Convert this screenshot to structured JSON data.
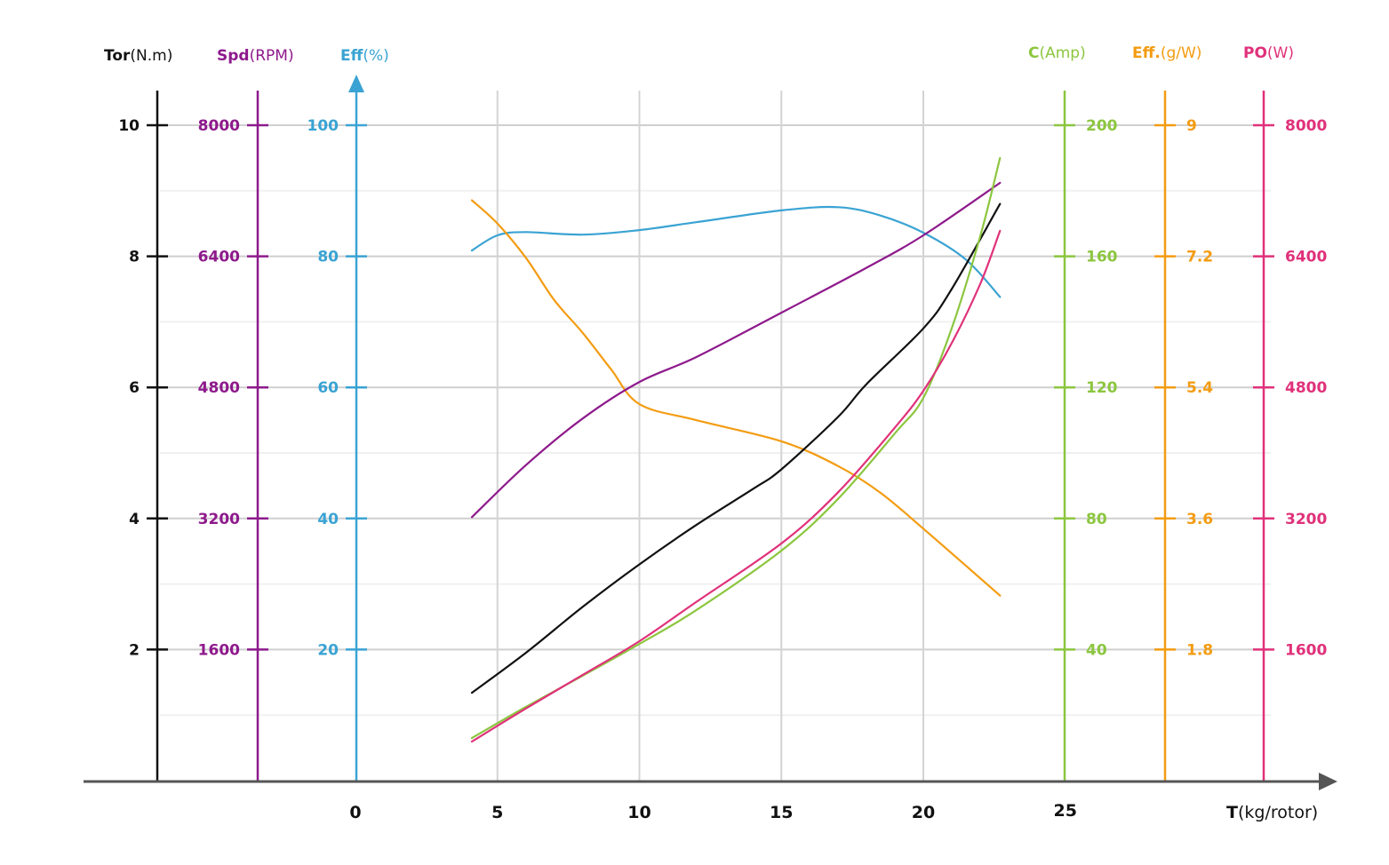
{
  "chart_data": {
    "type": "line",
    "title": "",
    "xlabel": {
      "bold": "T",
      "unit": "(kg/rotor)"
    },
    "x_ticks": [
      0,
      5,
      10,
      15,
      20,
      25
    ],
    "xlim": [
      0,
      25
    ],
    "grid": true,
    "axes": [
      {
        "id": "tor",
        "side": "left",
        "bold": "Tor",
        "unit": "(N.m)",
        "color": "#111111",
        "range": [
          0,
          10
        ],
        "ticks": [
          "2",
          "4",
          "6",
          "8",
          "10"
        ],
        "tick_values": [
          2,
          4,
          6,
          8,
          10
        ]
      },
      {
        "id": "spd",
        "side": "left",
        "bold": "Spd",
        "unit": "(RPM)",
        "color": "#8e1a8c",
        "range": [
          0,
          8000
        ],
        "ticks": [
          "1600",
          "3200",
          "4800",
          "6400",
          "8000"
        ],
        "tick_values": [
          1600,
          3200,
          4800,
          6400,
          8000
        ]
      },
      {
        "id": "eff",
        "side": "left",
        "bold": "Eff",
        "unit": "(%)",
        "color": "#3aa3d3",
        "range": [
          0,
          100
        ],
        "ticks": [
          "20",
          "40",
          "60",
          "80",
          "100"
        ],
        "tick_values": [
          20,
          40,
          60,
          80,
          100
        ]
      },
      {
        "id": "cur",
        "side": "right",
        "bold": "C",
        "unit": "(Amp)",
        "color": "#8cc63f",
        "range": [
          0,
          200
        ],
        "ticks": [
          "40",
          "80",
          "120",
          "160",
          "200"
        ],
        "tick_values": [
          40,
          80,
          120,
          160,
          200
        ]
      },
      {
        "id": "effgw",
        "side": "right",
        "bold": "Eff.",
        "unit": "(g/W)",
        "color": "#f39c12",
        "range": [
          0,
          9
        ],
        "ticks": [
          "1.8",
          "3.6",
          "5.4",
          "7.2",
          "9"
        ],
        "tick_values": [
          1.8,
          3.6,
          5.4,
          7.2,
          9
        ]
      },
      {
        "id": "po",
        "side": "right",
        "bold": "PO",
        "unit": "(W)",
        "color": "#e0317a",
        "range": [
          0,
          8000
        ],
        "ticks": [
          "1600",
          "3200",
          "4800",
          "6400",
          "8000"
        ],
        "tick_values": [
          1600,
          3200,
          4800,
          6400,
          8000
        ]
      }
    ],
    "series": [
      {
        "name": "Torque",
        "axis": "tor",
        "color": "#111111",
        "x": [
          4.1,
          6,
          8,
          10,
          12,
          14,
          15,
          17,
          18,
          20,
          21,
          22.7
        ],
        "y": [
          1.34,
          1.95,
          2.65,
          3.3,
          3.9,
          4.45,
          4.75,
          5.55,
          6.05,
          6.9,
          7.5,
          8.8
        ]
      },
      {
        "name": "Speed",
        "axis": "spd",
        "color": "#8e1a8c",
        "x": [
          4.1,
          6,
          8,
          10,
          12,
          15,
          18,
          20,
          22.7
        ],
        "y": [
          3216,
          3850,
          4420,
          4866,
          5170,
          5712,
          6260,
          6656,
          7296
        ]
      },
      {
        "name": "Efficiency %",
        "axis": "eff",
        "color": "#3aa3d3",
        "x": [
          4.1,
          5,
          6,
          8,
          10,
          12,
          15,
          17,
          18.5,
          20,
          21.5,
          22.7
        ],
        "y": [
          80.9,
          83.2,
          83.7,
          83.3,
          84.0,
          85.2,
          87.0,
          87.5,
          86.2,
          83.6,
          79.5,
          73.8
        ]
      },
      {
        "name": "Efficiency g/W",
        "axis": "effgw",
        "color": "#f39c12",
        "x": [
          4.1,
          5,
          6,
          7,
          8,
          9,
          10,
          12,
          15,
          17,
          18.5,
          20,
          22.7
        ],
        "y": [
          7.97,
          7.65,
          7.18,
          6.6,
          6.15,
          5.65,
          5.17,
          4.95,
          4.66,
          4.32,
          3.95,
          3.46,
          2.54
        ]
      },
      {
        "name": "Current",
        "axis": "cur",
        "color": "#8cc63f",
        "x": [
          4.1,
          6,
          8,
          10,
          12,
          15,
          17,
          19,
          20,
          21,
          22,
          22.7
        ],
        "y": [
          13,
          22.5,
          32,
          41.7,
          52,
          70.2,
          86,
          106,
          116.8,
          138,
          166,
          190
        ]
      },
      {
        "name": "Power Out",
        "axis": "po",
        "color": "#e0317a",
        "x": [
          4.1,
          6,
          8,
          10,
          12,
          15,
          17,
          19,
          20,
          21,
          22,
          22.7
        ],
        "y": [
          477,
          880,
          1290,
          1702,
          2180,
          2895,
          3520,
          4310,
          4758,
          5340,
          6060,
          6711
        ]
      }
    ]
  }
}
